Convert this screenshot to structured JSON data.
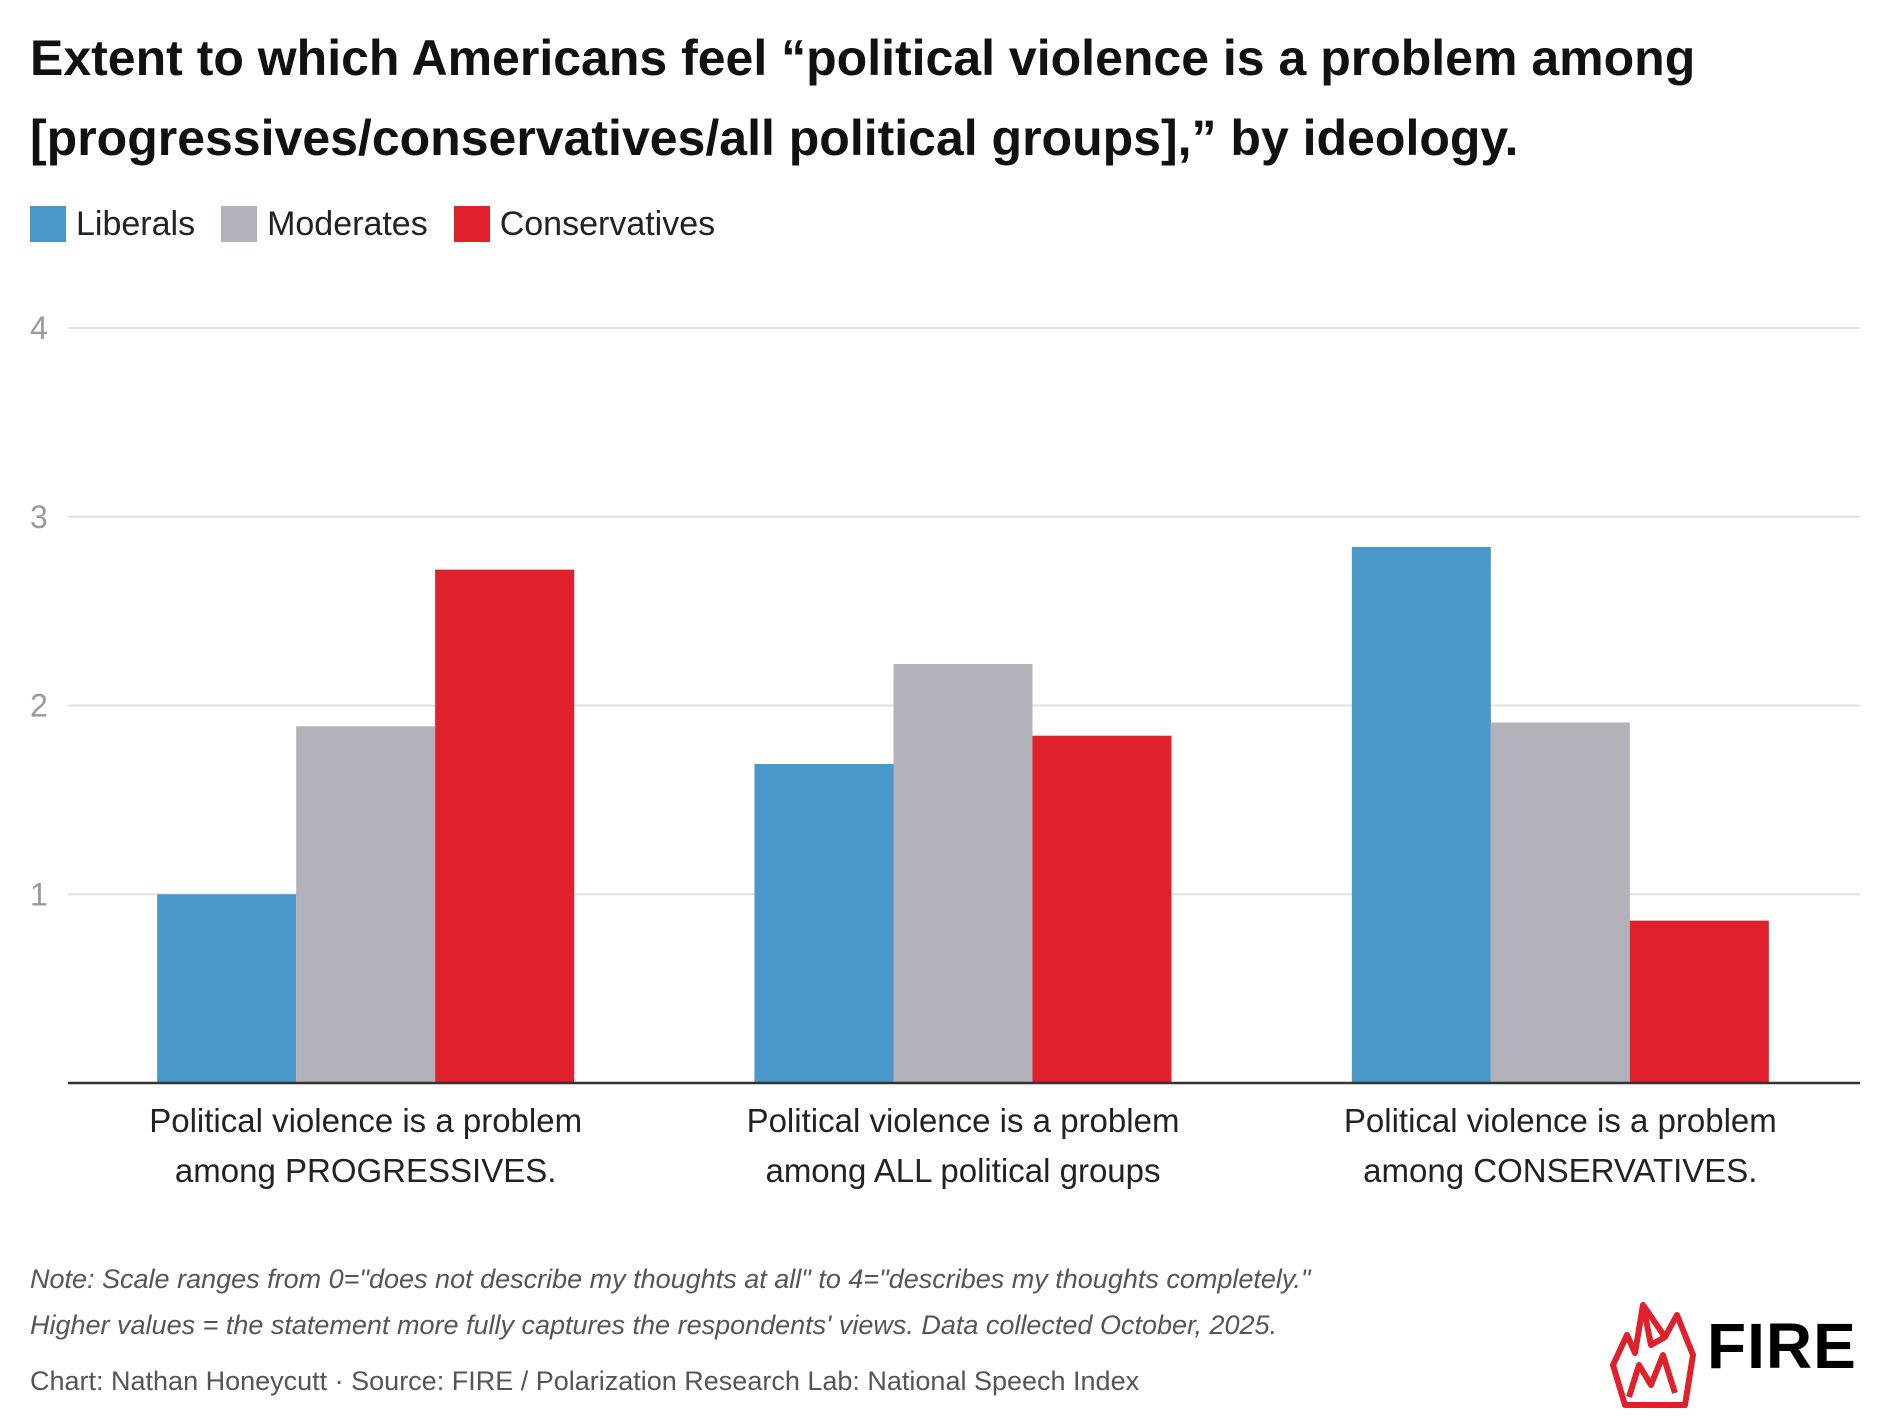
{
  "title": {
    "line1": "Extent to which Americans feel “political violence is a problem among",
    "line2": "[progressives/conservatives/all political groups],” by ideology."
  },
  "legend": [
    {
      "label": "Liberals",
      "color": "#4a97c9"
    },
    {
      "label": "Moderates",
      "color": "#b3b1ba"
    },
    {
      "label": "Conservatives",
      "color": "#e0202a"
    }
  ],
  "chart_data": {
    "type": "bar",
    "categories": [
      [
        "Political violence is a problem",
        "among PROGRESSIVES."
      ],
      [
        "Political violence is a problem",
        "among ALL political groups"
      ],
      [
        "Political violence is a problem",
        "among CONSERVATIVES."
      ]
    ],
    "series": [
      {
        "name": "Liberals",
        "color": "#4a97c9",
        "values": [
          1.0,
          1.69,
          2.84
        ]
      },
      {
        "name": "Moderates",
        "color": "#b3b1ba",
        "values": [
          1.89,
          2.22,
          1.91
        ]
      },
      {
        "name": "Conservatives",
        "color": "#e0202a",
        "values": [
          2.72,
          1.84,
          0.86
        ]
      }
    ],
    "yticks": [
      "1",
      "2",
      "3",
      "4"
    ],
    "ylim": [
      0,
      4
    ],
    "grid": true,
    "legend_position": "top-left"
  },
  "note": {
    "line1": "Note: Scale ranges from 0=\"does not describe my thoughts at all\" to 4=\"describes my thoughts completely.\"",
    "line2": "Higher values = the statement more fully captures the respondents' views. Data collected October, 2025."
  },
  "credit": "Chart: Nathan Honeycutt · Source: FIRE / Polarization Research Lab: National Speech Index",
  "logo": {
    "text": "FIRE",
    "icon": "fire-flame-icon",
    "color": "#e0202a"
  }
}
